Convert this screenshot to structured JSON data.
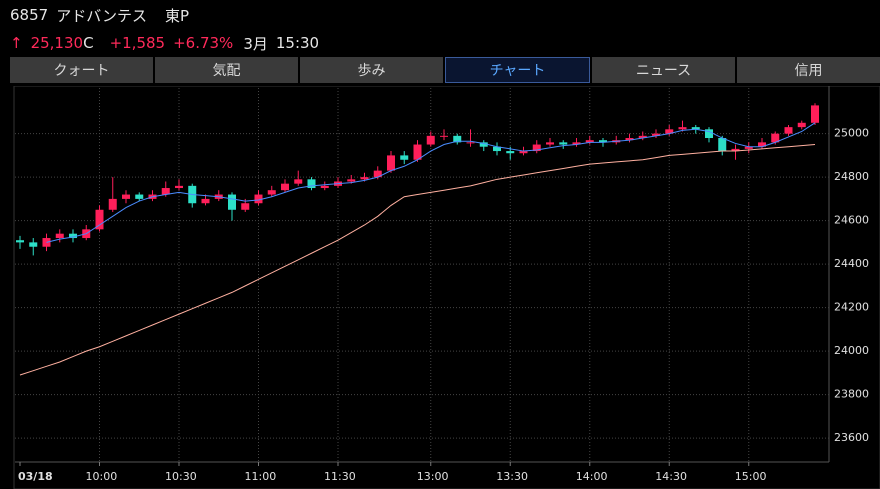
{
  "header": {
    "code": "6857",
    "name": "アドバンテス",
    "market": "東P",
    "arrow": "↑",
    "price": "25,130",
    "price_flag": "C",
    "change": "+1,585",
    "change_pct": "+6.73%",
    "month": "3月",
    "time": "15:30"
  },
  "tabs": [
    "クォート",
    "気配",
    "歩み",
    "チャート",
    "ニュース",
    "信用"
  ],
  "active_tab": 3,
  "chart_data": {
    "type": "candlestick",
    "categories": [
      "03/18",
      null,
      null,
      null,
      null,
      null,
      "10:00",
      null,
      null,
      null,
      null,
      null,
      "10:30",
      null,
      null,
      null,
      null,
      null,
      "11:00",
      null,
      null,
      null,
      null,
      null,
      "11:30",
      null,
      null,
      null,
      null,
      null,
      null,
      "13:00",
      null,
      null,
      null,
      null,
      null,
      "13:30",
      null,
      null,
      null,
      null,
      null,
      "14:00",
      null,
      null,
      null,
      null,
      null,
      "14:30",
      null,
      null,
      null,
      null,
      null,
      "15:00",
      null,
      null,
      null,
      null,
      null
    ],
    "open": [
      24510,
      24500,
      24480,
      24520,
      24540,
      24520,
      24560,
      24650,
      24700,
      24720,
      24700,
      24720,
      24750,
      24760,
      24680,
      24700,
      24720,
      24650,
      24680,
      24720,
      24740,
      24770,
      24790,
      24750,
      24760,
      24780,
      24790,
      24800,
      24830,
      24900,
      24880,
      24950,
      24990,
      24990,
      24960,
      24960,
      24940,
      24920,
      24910,
      24920,
      24950,
      24960,
      24950,
      24960,
      24970,
      24960,
      24970,
      24980,
      24990,
      25000,
      25020,
      25030,
      25020,
      24980,
      24920,
      24930,
      24940,
      24960,
      25000,
      25030,
      25050
    ],
    "high": [
      24530,
      24520,
      24540,
      24560,
      24560,
      24580,
      24670,
      24800,
      24740,
      24730,
      24740,
      24780,
      24790,
      24770,
      24720,
      24740,
      24730,
      24700,
      24740,
      24760,
      24790,
      24830,
      24800,
      24780,
      24800,
      24810,
      24820,
      24850,
      24920,
      24920,
      24970,
      25010,
      25020,
      25000,
      25020,
      24970,
      24960,
      24940,
      24940,
      24970,
      24980,
      24970,
      24980,
      24990,
      24980,
      24990,
      25000,
      25010,
      25020,
      25040,
      25060,
      25040,
      25030,
      24990,
      24950,
      24960,
      24980,
      25010,
      25040,
      25060,
      25140
    ],
    "low": [
      24470,
      24440,
      24460,
      24500,
      24500,
      24510,
      24550,
      24640,
      24680,
      24690,
      24690,
      24710,
      24740,
      24660,
      24670,
      24690,
      24600,
      24640,
      24670,
      24710,
      24730,
      24760,
      24740,
      24740,
      24750,
      24770,
      24780,
      24790,
      24820,
      24860,
      24870,
      24940,
      24970,
      24950,
      24940,
      24920,
      24900,
      24880,
      24900,
      24910,
      24940,
      24930,
      24940,
      24950,
      24940,
      24950,
      24960,
      24970,
      24980,
      24990,
      25010,
      25000,
      24960,
      24900,
      24880,
      24910,
      24930,
      24950,
      24990,
      25020,
      25040
    ],
    "close": [
      24500,
      24480,
      24520,
      24540,
      24520,
      24560,
      24650,
      24700,
      24720,
      24700,
      24720,
      24750,
      24760,
      24680,
      24700,
      24720,
      24650,
      24680,
      24720,
      24740,
      24770,
      24790,
      24750,
      24760,
      24780,
      24790,
      24800,
      24830,
      24900,
      24880,
      24950,
      24990,
      24990,
      24960,
      24960,
      24940,
      24920,
      24910,
      24920,
      24950,
      24960,
      24950,
      24960,
      24970,
      24960,
      24970,
      24980,
      24990,
      25000,
      25020,
      25030,
      25020,
      24980,
      24920,
      24930,
      24940,
      24960,
      25000,
      25030,
      25050,
      25130
    ],
    "up_color": "#ff1f5a",
    "down_color": "#2de0c8",
    "lines": [
      {
        "color": "#4a8cff",
        "values": [
          null,
          null,
          24500,
          24515,
          24525,
          24540,
          24580,
          24620,
          24660,
          24690,
          24710,
          24720,
          24730,
          24720,
          24715,
          24710,
          24700,
          24690,
          24695,
          24710,
          24730,
          24750,
          24760,
          24765,
          24770,
          24775,
          24785,
          24800,
          24830,
          24850,
          24880,
          24920,
          24950,
          24965,
          24965,
          24955,
          24940,
          24930,
          24920,
          24925,
          24935,
          24945,
          24950,
          24960,
          24960,
          24965,
          24970,
          24980,
          24990,
          25000,
          25015,
          25020,
          25010,
          24980,
          24955,
          24940,
          24940,
          24960,
          24985,
          25010,
          25050
        ]
      },
      {
        "color": "#ffb0a0",
        "values": [
          23890,
          23910,
          23930,
          23950,
          23975,
          24000,
          24020,
          24045,
          24070,
          24095,
          24120,
          24145,
          24170,
          24195,
          24220,
          24245,
          24270,
          24300,
          24330,
          24360,
          24390,
          24420,
          24450,
          24480,
          24510,
          24545,
          24580,
          24620,
          24670,
          24710,
          24720,
          24730,
          24740,
          24750,
          24760,
          24775,
          24790,
          24800,
          24810,
          24820,
          24830,
          24840,
          24850,
          24860,
          24865,
          24870,
          24875,
          24880,
          24890,
          24900,
          24905,
          24910,
          24915,
          24920,
          24920,
          24925,
          24930,
          24935,
          24940,
          24945,
          24950
        ]
      }
    ],
    "ylim": [
      23490,
      25210
    ],
    "yticks": [
      23600,
      23800,
      24000,
      24200,
      24400,
      24600,
      24800,
      25000
    ],
    "grid": true
  }
}
